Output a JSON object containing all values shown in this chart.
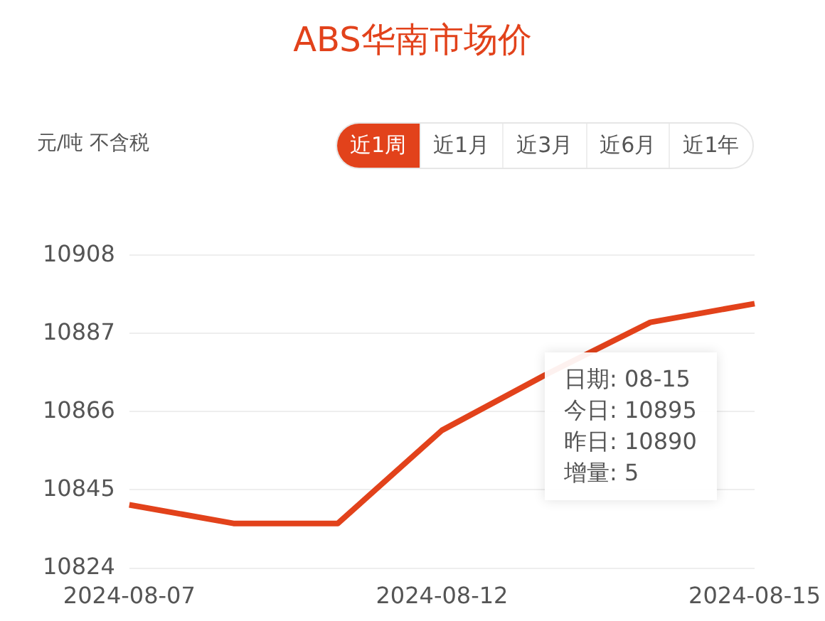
{
  "chart_data": {
    "type": "line",
    "title": "ABS华南市场价",
    "ylabel": "元/吨 不含税",
    "categories": [
      "2024-08-07",
      null,
      null,
      "2024-08-12",
      null,
      null,
      "2024-08-15"
    ],
    "series": [
      {
        "color": "#e2421b",
        "values": [
          10841,
          10836,
          10836,
          10861,
          10876,
          10890,
          10895
        ]
      }
    ],
    "ylim": [
      10824,
      10908
    ],
    "yticks": [
      10824,
      10845,
      10866,
      10887,
      10908
    ],
    "grid": "y",
    "legend": false,
    "annotations": [
      "近1周",
      "近1月",
      "近3月",
      "近6月",
      "近1年",
      "日期: 08-15\n今日: 10895\n昨日: 10890\n增量: 5"
    ]
  }
}
